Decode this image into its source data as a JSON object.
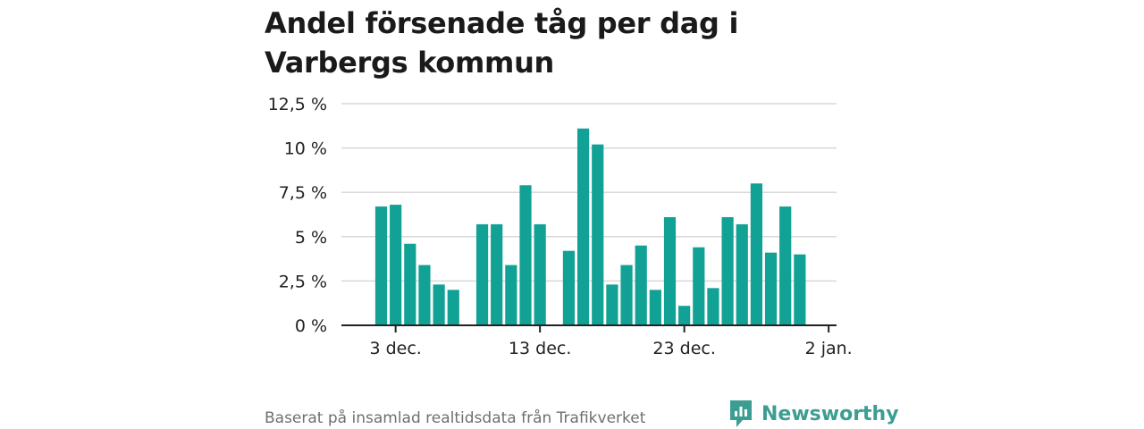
{
  "title": "Andel försenade tåg per dag i Varbergs kommun",
  "source": "Baserat på insamlad realtidsdata från Trafikverket",
  "brand": "Newsworthy",
  "colors": {
    "bar": "#12a195",
    "brand": "#3c9e92"
  },
  "chart_data": {
    "type": "bar",
    "x_axis": "date",
    "x_ticks": [
      "3 dec.",
      "13 dec.",
      "23 dec.",
      "2 jan."
    ],
    "y_ticks": [
      "0 %",
      "2,5 %",
      "5 %",
      "7,5 %",
      "10 %",
      "12,5 %"
    ],
    "ylim": [
      0,
      12.5
    ],
    "grid": true,
    "series": [
      {
        "points": [
          {
            "date": "2 dec.",
            "value": 6.7
          },
          {
            "date": "3 dec.",
            "value": 6.8
          },
          {
            "date": "4 dec.",
            "value": 4.6
          },
          {
            "date": "5 dec.",
            "value": 3.4
          },
          {
            "date": "6 dec.",
            "value": 2.3
          },
          {
            "date": "7 dec.",
            "value": 2.0
          },
          {
            "date": "9 dec.",
            "value": 5.7
          },
          {
            "date": "10 dec.",
            "value": 5.7
          },
          {
            "date": "11 dec.",
            "value": 3.4
          },
          {
            "date": "12 dec.",
            "value": 7.9
          },
          {
            "date": "13 dec.",
            "value": 5.7
          },
          {
            "date": "15 dec.",
            "value": 4.2
          },
          {
            "date": "16 dec.",
            "value": 11.1
          },
          {
            "date": "17 dec.",
            "value": 10.2
          },
          {
            "date": "18 dec.",
            "value": 2.3
          },
          {
            "date": "19 dec.",
            "value": 3.4
          },
          {
            "date": "20 dec.",
            "value": 4.5
          },
          {
            "date": "21 dec.",
            "value": 2.0
          },
          {
            "date": "22 dec.",
            "value": 6.1
          },
          {
            "date": "23 dec.",
            "value": 1.1
          },
          {
            "date": "24 dec.",
            "value": 4.4
          },
          {
            "date": "25 dec.",
            "value": 2.1
          },
          {
            "date": "26 dec.",
            "value": 6.1
          },
          {
            "date": "27 dec.",
            "value": 5.7
          },
          {
            "date": "28 dec.",
            "value": 8.0
          },
          {
            "date": "29 dec.",
            "value": 4.1
          },
          {
            "date": "30 dec.",
            "value": 6.7
          },
          {
            "date": "31 dec.",
            "value": 4.0
          }
        ]
      }
    ]
  }
}
